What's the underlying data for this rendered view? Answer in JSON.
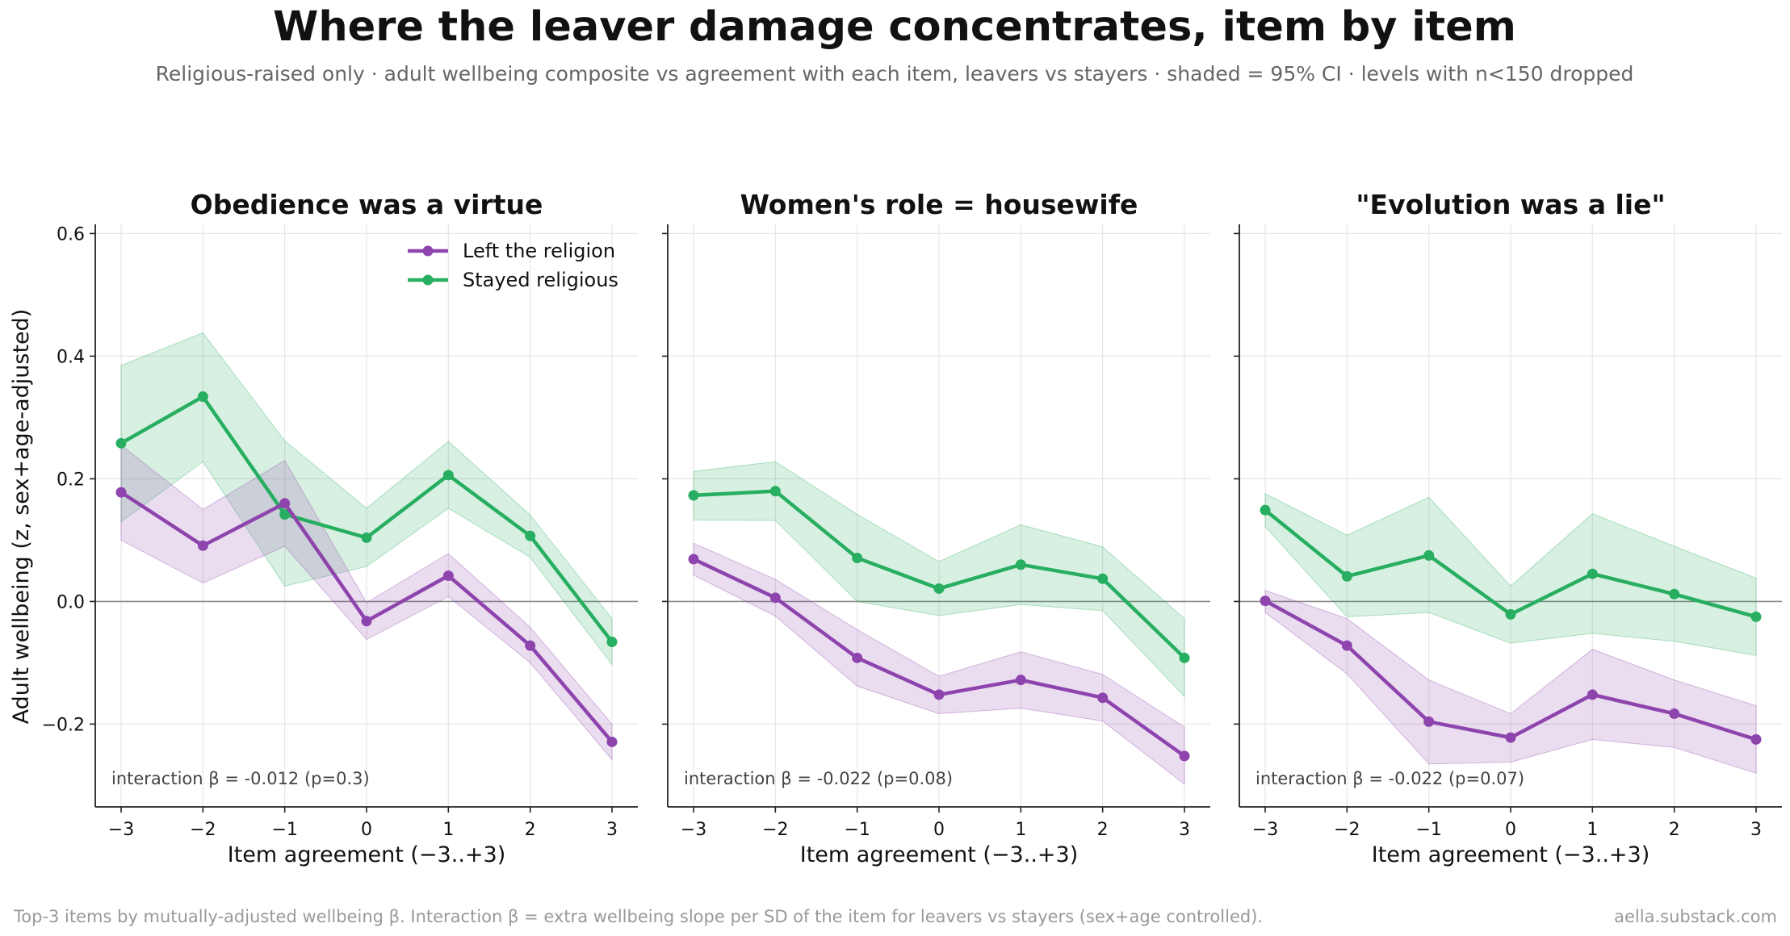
{
  "title": "Where the leaver damage concentrates, item by item",
  "subtitle": "Religious-raised only · adult wellbeing composite vs agreement with each item, leavers vs stayers · shaded = 95% CI · levels with n<150 dropped",
  "footnote": "Top-3 items by mutually-adjusted wellbeing β. Interaction β = extra wellbeing slope per SD of the item for leavers vs stayers (sex+age controlled).",
  "credit": "aella.substack.com",
  "colors": {
    "leavers": "#8e44ad",
    "stayers": "#27ae60",
    "zero_line": "#888888",
    "grid": "#e6e6e6"
  },
  "chart_data": {
    "type": "line",
    "ylabel": "Adult wellbeing (z, sex+age-adjusted)",
    "xlabel": "Item agreement (−3..+3)",
    "x": [
      -3,
      -2,
      -1,
      0,
      1,
      2,
      3
    ],
    "x_tick_labels": [
      "−3",
      "−2",
      "−1",
      "0",
      "1",
      "2",
      "3"
    ],
    "ylim": [
      -0.335,
      0.615
    ],
    "yticks": [
      -0.2,
      0.0,
      0.2,
      0.4,
      0.6
    ],
    "y_tick_labels": [
      "−0.2",
      "0.0",
      "0.2",
      "0.4",
      "0.6"
    ],
    "shared_y": true,
    "grid": true,
    "legend": {
      "placement": "top-right",
      "panel": 0
    },
    "series_names": [
      "Left the religion",
      "Stayed religious"
    ],
    "panels": [
      {
        "title": "Obedience was a virtue",
        "annotation": "interaction β = -0.012 (p=0.3)",
        "series": [
          {
            "name": "Left the religion",
            "values": [
              0.178,
              0.091,
              0.16,
              -0.032,
              0.042,
              -0.072,
              -0.229
            ],
            "ci_low": [
              0.1,
              0.03,
              0.09,
              -0.062,
              0.008,
              -0.1,
              -0.258
            ],
            "ci_high": [
              0.255,
              0.15,
              0.23,
              -0.002,
              0.078,
              -0.042,
              -0.2
            ]
          },
          {
            "name": "Stayed religious",
            "values": [
              0.258,
              0.334,
              0.142,
              0.104,
              0.206,
              0.107,
              -0.066
            ],
            "ci_low": [
              0.13,
              0.228,
              0.025,
              0.057,
              0.152,
              0.072,
              -0.103
            ],
            "ci_high": [
              0.385,
              0.438,
              0.262,
              0.152,
              0.261,
              0.141,
              -0.028
            ]
          }
        ]
      },
      {
        "title": "Women's role = housewife",
        "annotation": "interaction β = -0.022 (p=0.08)",
        "series": [
          {
            "name": "Left the religion",
            "values": [
              0.069,
              0.006,
              -0.092,
              -0.152,
              -0.128,
              -0.157,
              -0.252
            ],
            "ci_low": [
              0.043,
              -0.024,
              -0.138,
              -0.183,
              -0.174,
              -0.195,
              -0.298
            ],
            "ci_high": [
              0.095,
              0.036,
              -0.046,
              -0.122,
              -0.082,
              -0.119,
              -0.205
            ]
          },
          {
            "name": "Stayed religious",
            "values": [
              0.173,
              0.18,
              0.071,
              0.021,
              0.06,
              0.037,
              -0.092
            ],
            "ci_low": [
              0.133,
              0.132,
              0.0,
              -0.023,
              -0.005,
              -0.015,
              -0.155
            ],
            "ci_high": [
              0.212,
              0.228,
              0.142,
              0.065,
              0.125,
              0.089,
              -0.028
            ]
          }
        ]
      },
      {
        "title": "\"Evolution was a lie\"",
        "annotation": "interaction β = -0.022 (p=0.07)",
        "series": [
          {
            "name": "Left the religion",
            "values": [
              0.001,
              -0.072,
              -0.196,
              -0.222,
              -0.152,
              -0.183,
              -0.225
            ],
            "ci_low": [
              -0.018,
              -0.118,
              -0.265,
              -0.262,
              -0.225,
              -0.238,
              -0.28
            ],
            "ci_high": [
              0.018,
              -0.028,
              -0.128,
              -0.183,
              -0.078,
              -0.128,
              -0.17
            ]
          },
          {
            "name": "Stayed religious",
            "values": [
              0.149,
              0.041,
              0.075,
              -0.021,
              0.045,
              0.012,
              -0.025
            ],
            "ci_low": [
              0.122,
              -0.025,
              -0.018,
              -0.068,
              -0.052,
              -0.065,
              -0.088
            ],
            "ci_high": [
              0.176,
              0.108,
              0.17,
              0.025,
              0.143,
              0.09,
              0.038
            ]
          }
        ]
      }
    ]
  }
}
